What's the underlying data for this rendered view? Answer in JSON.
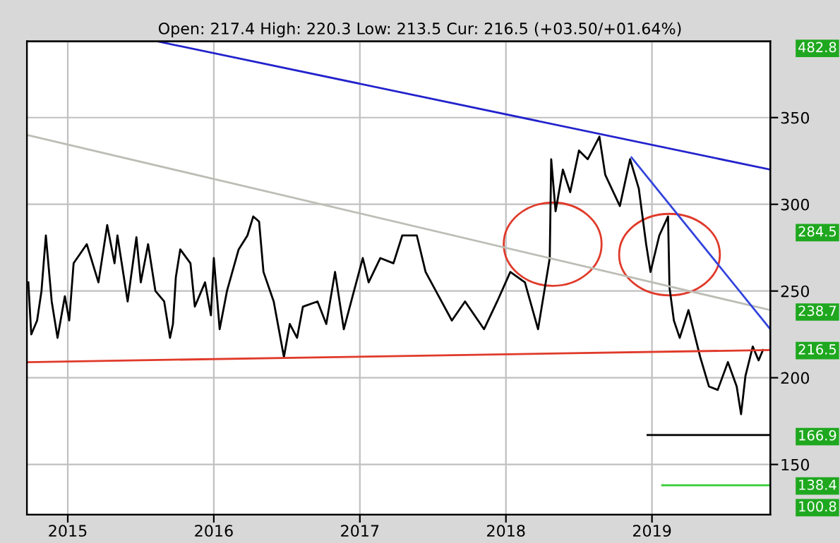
{
  "chart_data": {
    "type": "line",
    "title": "Open: 217.4 High: 220.3 Low: 213.5 Cur: 216.5 (+03.50/+01.64%)",
    "xlim": [
      2014.72,
      2019.81
    ],
    "xticks": [
      {
        "value": 2015,
        "label": "2015"
      },
      {
        "value": 2016,
        "label": "2016"
      },
      {
        "value": 2017,
        "label": "2017"
      },
      {
        "value": 2018,
        "label": "2018"
      },
      {
        "value": 2019,
        "label": "2019"
      }
    ],
    "ylim": [
      121,
      394
    ],
    "yticks": [
      150,
      200,
      250,
      300,
      350
    ],
    "grid": true,
    "legend": false,
    "series": [
      {
        "color": "#000000",
        "x": [
          2014.73,
          2014.75,
          2014.79,
          2014.82,
          2014.85,
          2014.89,
          2014.93,
          2014.98,
          2015.01,
          2015.04,
          2015.13,
          2015.21,
          2015.27,
          2015.32,
          2015.34,
          2015.41,
          2015.47,
          2015.5,
          2015.55,
          2015.6,
          2015.66,
          2015.7,
          2015.72,
          2015.74,
          2015.77,
          2015.84,
          2015.87,
          2015.94,
          2015.98,
          2016.0,
          2016.04,
          2016.09,
          2016.17,
          2016.23,
          2016.27,
          2016.31,
          2016.34,
          2016.41,
          2016.48,
          2016.52,
          2016.57,
          2016.61,
          2016.71,
          2016.77,
          2016.83,
          2016.89,
          2016.95,
          2017.02,
          2017.06,
          2017.14,
          2017.23,
          2017.29,
          2017.39,
          2017.45,
          2017.54,
          2017.63,
          2017.72,
          2017.85,
          2017.94,
          2018.03,
          2018.13,
          2018.22,
          2018.3,
          2018.31,
          2018.34,
          2018.39,
          2018.44,
          2018.5,
          2018.56,
          2018.64,
          2018.68,
          2018.78,
          2018.85,
          2018.91,
          2018.96,
          2018.99,
          2019.05,
          2019.11,
          2019.12,
          2019.15,
          2019.19,
          2019.25,
          2019.33,
          2019.39,
          2019.45,
          2019.52,
          2019.58,
          2019.61,
          2019.64,
          2019.69,
          2019.73,
          2019.76
        ],
        "values": [
          255,
          225,
          233,
          250,
          282,
          244,
          223,
          247,
          233,
          266,
          277,
          255,
          288,
          266,
          282,
          244,
          281,
          255,
          277,
          250,
          244,
          223,
          231,
          258,
          274,
          266,
          241,
          255,
          236,
          269,
          228,
          250,
          274,
          282,
          293,
          290,
          261,
          244,
          212,
          231,
          223,
          241,
          244,
          231,
          261,
          228,
          247,
          269,
          255,
          269,
          266,
          282,
          282,
          261,
          247,
          233,
          244,
          228,
          244,
          261,
          255,
          228,
          269,
          326,
          296,
          320,
          307,
          331,
          326,
          339,
          317,
          299,
          326,
          309,
          277,
          261,
          282,
          293,
          252,
          233,
          223,
          239,
          212,
          195,
          193,
          209,
          195,
          179,
          201,
          218,
          210,
          216
        ]
      },
      {
        "color": "#e03a2a",
        "x": [
          2014.72,
          2019.81
        ],
        "values": [
          209,
          216
        ]
      },
      {
        "color": "#bdbdb5",
        "x": [
          2014.72,
          2019.81
        ],
        "values": [
          340,
          239
        ]
      },
      {
        "color": "#2222cc",
        "x": [
          2015.61,
          2019.81
        ],
        "values": [
          394,
          320
        ]
      },
      {
        "color": "#3344dd",
        "x": [
          2018.86,
          2019.81
        ],
        "values": [
          327,
          228
        ]
      },
      {
        "color": "#000000",
        "x": [
          2018.97,
          2019.81
        ],
        "values": [
          167,
          167
        ]
      },
      {
        "color": "#33cc33",
        "x": [
          2019.07,
          2019.81
        ],
        "values": [
          138,
          138
        ]
      }
    ],
    "y2lim": [
      121,
      394
    ],
    "y2ticks": [
      284.5,
      238.7,
      216.5,
      166.9,
      138.4
    ],
    "annotations": [
      "482.8",
      "100.8"
    ]
  }
}
